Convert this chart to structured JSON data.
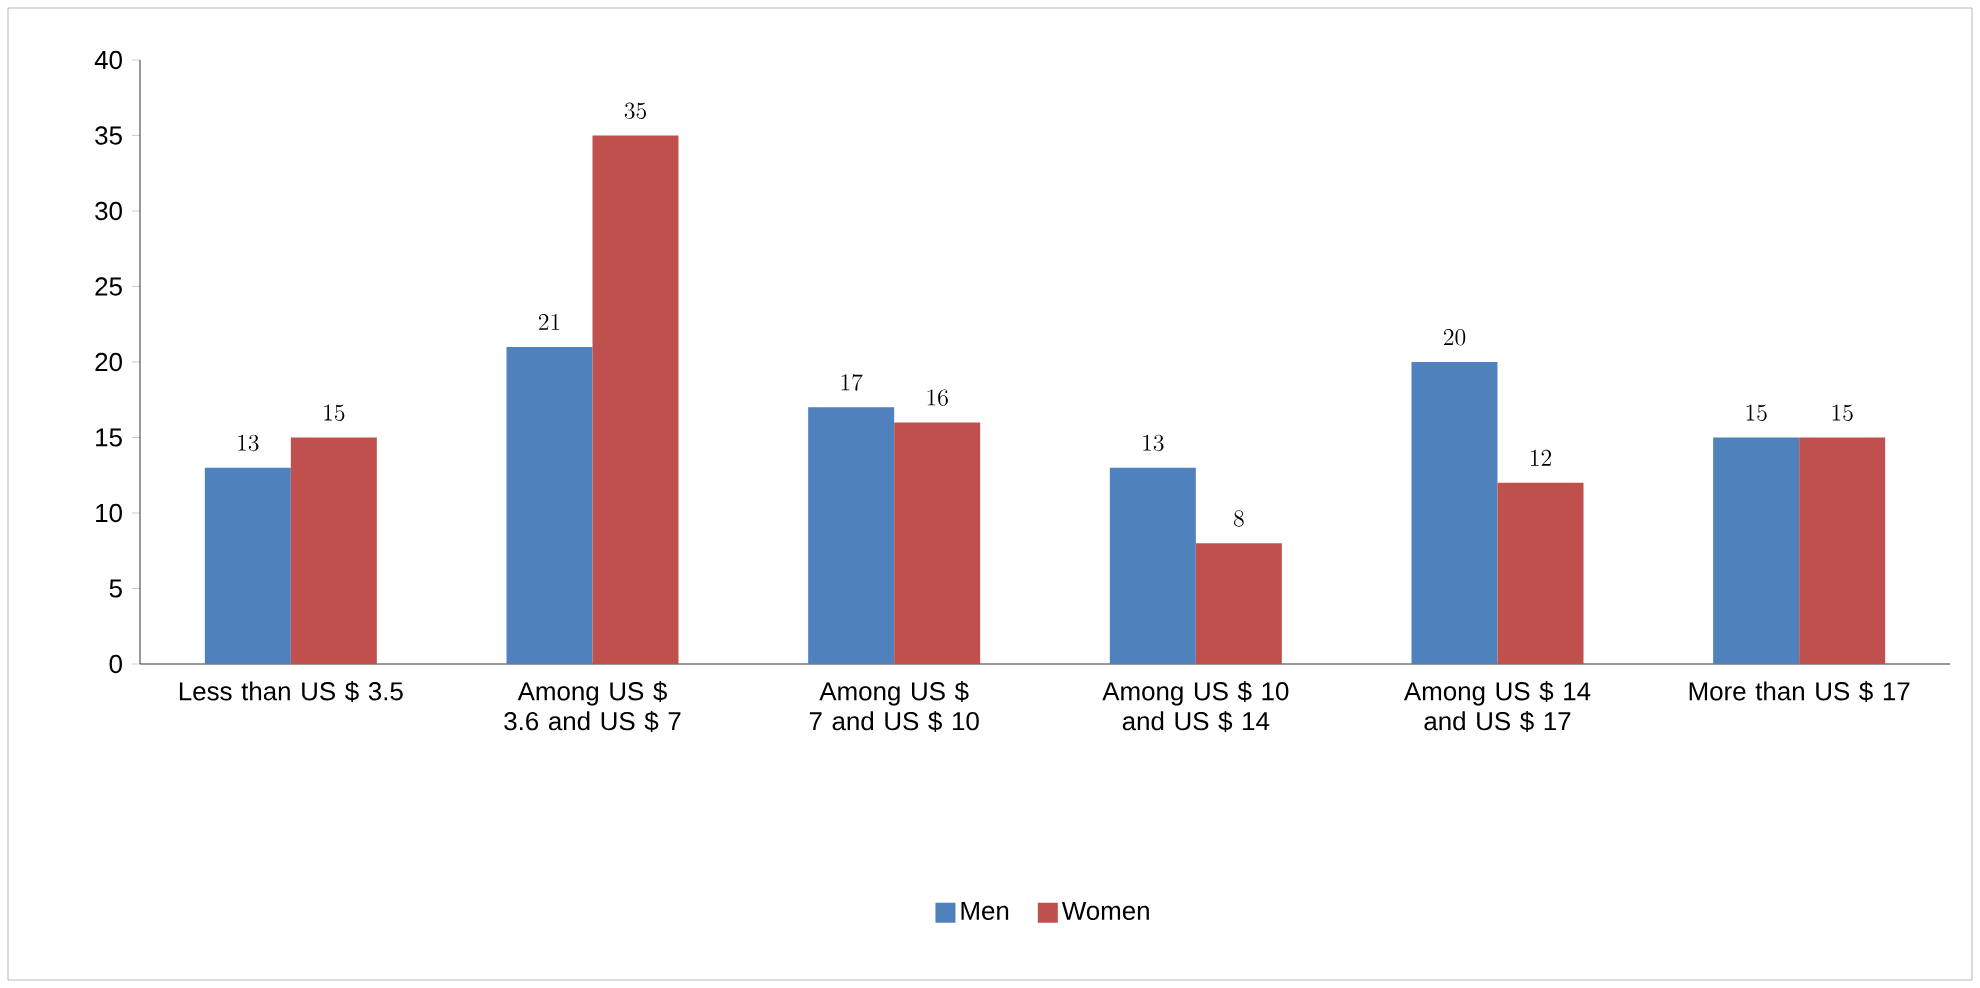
{
  "chart_data": {
    "type": "bar",
    "categories": [
      "Less than US $ 3.5",
      "Among US $ 3.6 and US $ 7",
      "Among US $ 7 and US $ 10",
      "Among US $ 10 and US $ 14",
      "Among US $ 14 and US $ 17",
      "More than US $ 17"
    ],
    "series": [
      {
        "name": "Men",
        "color": "#4f81bd",
        "values": [
          13,
          21,
          17,
          13,
          20,
          15
        ]
      },
      {
        "name": "Women",
        "color": "#c0504d",
        "values": [
          15,
          35,
          16,
          8,
          12,
          15
        ]
      }
    ],
    "ylim": [
      0,
      40
    ],
    "yticks": [
      0,
      5,
      10,
      15,
      20,
      25,
      30,
      35,
      40
    ],
    "data_labels": true,
    "legend": "bottom",
    "grid": false
  }
}
